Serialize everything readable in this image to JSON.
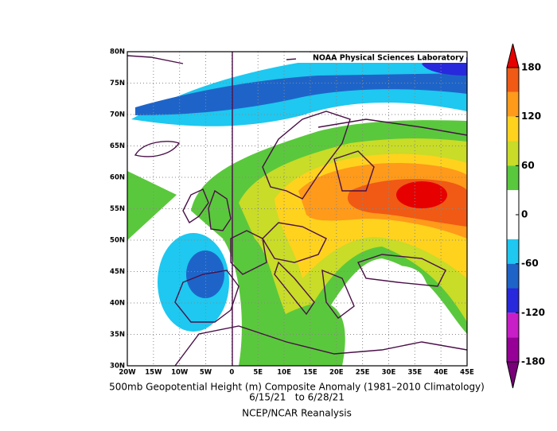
{
  "map": {
    "credit": "NOAA Physical Sciences Laboratory",
    "title": "500mb Geopotential Height (m) Composite Anomaly (1981–2010 Climatology)",
    "dates": "6/15/21   to 6/28/21",
    "source": "NCEP/NCAR Reanalysis",
    "lon_labels": [
      "20W",
      "15W",
      "10W",
      "5W",
      "0",
      "5E",
      "10E",
      "15E",
      "20E",
      "25E",
      "30E",
      "35E",
      "40E",
      "45E"
    ],
    "lat_labels": [
      "80N",
      "75N",
      "70N",
      "65N",
      "60N",
      "55N",
      "50N",
      "45N",
      "40N",
      "35N",
      "30N"
    ]
  },
  "colorbar": {
    "ticks": [
      180,
      120,
      60,
      0,
      -60,
      -120,
      -180
    ]
  }
}
